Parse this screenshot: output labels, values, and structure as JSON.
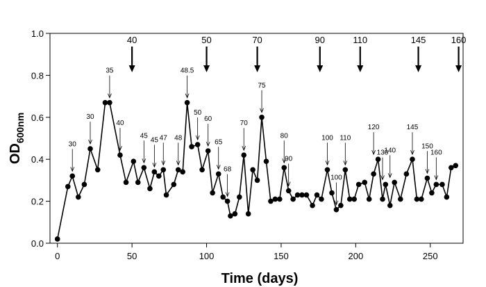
{
  "chart_data": {
    "type": "line",
    "xlabel": "Time (days)",
    "ylabel": {
      "main": "OD",
      "sub": "600nm"
    },
    "xlim": [
      -5,
      272
    ],
    "ylim": [
      0,
      1.0
    ],
    "xticks": [
      0,
      50,
      100,
      150,
      200,
      250
    ],
    "yticks": [
      0.0,
      0.2,
      0.4,
      0.6,
      0.8,
      1.0
    ],
    "ytick_labels": [
      "0.0",
      "0.2",
      "0.4",
      "0.6",
      "0.8",
      "1.0"
    ],
    "grid": false,
    "series": [
      {
        "marker": "circle",
        "color": "#000000",
        "x": [
          0,
          7,
          10,
          14,
          18,
          22,
          27,
          32,
          35,
          42,
          46,
          51,
          54,
          58,
          62,
          65,
          68,
          71,
          73,
          78,
          81,
          84,
          87,
          90,
          94,
          97,
          101,
          104,
          108,
          111,
          114,
          116,
          119,
          122,
          125,
          128,
          131,
          134,
          137,
          140,
          143,
          146,
          149,
          152,
          155,
          158,
          161,
          164,
          167,
          171,
          174,
          177,
          181,
          184,
          187,
          190,
          193,
          196,
          199,
          202,
          206,
          209,
          212,
          215,
          218,
          220,
          223,
          226,
          230,
          234,
          238,
          241,
          244,
          248,
          251,
          254,
          258,
          261,
          264,
          267
        ],
        "y": [
          0.02,
          0.27,
          0.32,
          0.22,
          0.28,
          0.45,
          0.35,
          0.67,
          0.67,
          0.42,
          0.29,
          0.39,
          0.29,
          0.36,
          0.26,
          0.34,
          0.32,
          0.35,
          0.23,
          0.28,
          0.35,
          0.34,
          0.67,
          0.46,
          0.47,
          0.35,
          0.44,
          0.24,
          0.33,
          0.22,
          0.2,
          0.13,
          0.14,
          0.22,
          0.42,
          0.14,
          0.35,
          0.3,
          0.6,
          0.39,
          0.2,
          0.21,
          0.21,
          0.36,
          0.25,
          0.21,
          0.23,
          0.23,
          0.23,
          0.18,
          0.23,
          0.21,
          0.35,
          0.24,
          0.16,
          0.18,
          0.35,
          0.21,
          0.21,
          0.28,
          0.29,
          0.21,
          0.33,
          0.4,
          0.21,
          0.28,
          0.18,
          0.29,
          0.21,
          0.33,
          0.4,
          0.21,
          0.21,
          0.31,
          0.24,
          0.28,
          0.28,
          0.22,
          0.36,
          0.37
        ]
      }
    ],
    "small_annotations": [
      {
        "label": "30",
        "x": 10,
        "y": 0.32
      },
      {
        "label": "30",
        "x": 22,
        "y": 0.45
      },
      {
        "label": "35",
        "x": 35,
        "y": 0.67
      },
      {
        "label": "40",
        "x": 42,
        "y": 0.42
      },
      {
        "label": "45",
        "x": 58,
        "y": 0.36
      },
      {
        "label": "45",
        "x": 65,
        "y": 0.34
      },
      {
        "label": "47",
        "x": 71,
        "y": 0.35
      },
      {
        "label": "48",
        "x": 81,
        "y": 0.35
      },
      {
        "label": "48.5",
        "x": 87,
        "y": 0.67
      },
      {
        "label": "50",
        "x": 94,
        "y": 0.47
      },
      {
        "label": "60",
        "x": 101,
        "y": 0.44
      },
      {
        "label": "65",
        "x": 108,
        "y": 0.33
      },
      {
        "label": "68",
        "x": 114,
        "y": 0.2
      },
      {
        "label": "70",
        "x": 125,
        "y": 0.42
      },
      {
        "label": "75",
        "x": 137,
        "y": 0.6
      },
      {
        "label": "80",
        "x": 152,
        "y": 0.36
      },
      {
        "label": "90",
        "x": 155,
        "y": 0.25
      },
      {
        "label": "100",
        "x": 181,
        "y": 0.35
      },
      {
        "label": "100",
        "x": 187,
        "y": 0.16
      },
      {
        "label": "110",
        "x": 193,
        "y": 0.35
      },
      {
        "label": "120",
        "x": 212,
        "y": 0.4
      },
      {
        "label": "130",
        "x": 218,
        "y": 0.28
      },
      {
        "label": "140",
        "x": 223,
        "y": 0.29
      },
      {
        "label": "145",
        "x": 238,
        "y": 0.4
      },
      {
        "label": "150",
        "x": 248,
        "y": 0.31
      },
      {
        "label": "160",
        "x": 254,
        "y": 0.28
      }
    ],
    "big_annotations": [
      {
        "label": "40",
        "x": 50
      },
      {
        "label": "50",
        "x": 100
      },
      {
        "label": "70",
        "x": 134
      },
      {
        "label": "90",
        "x": 176
      },
      {
        "label": "110",
        "x": 203
      },
      {
        "label": "145",
        "x": 242
      },
      {
        "label": "160",
        "x": 269
      }
    ]
  }
}
